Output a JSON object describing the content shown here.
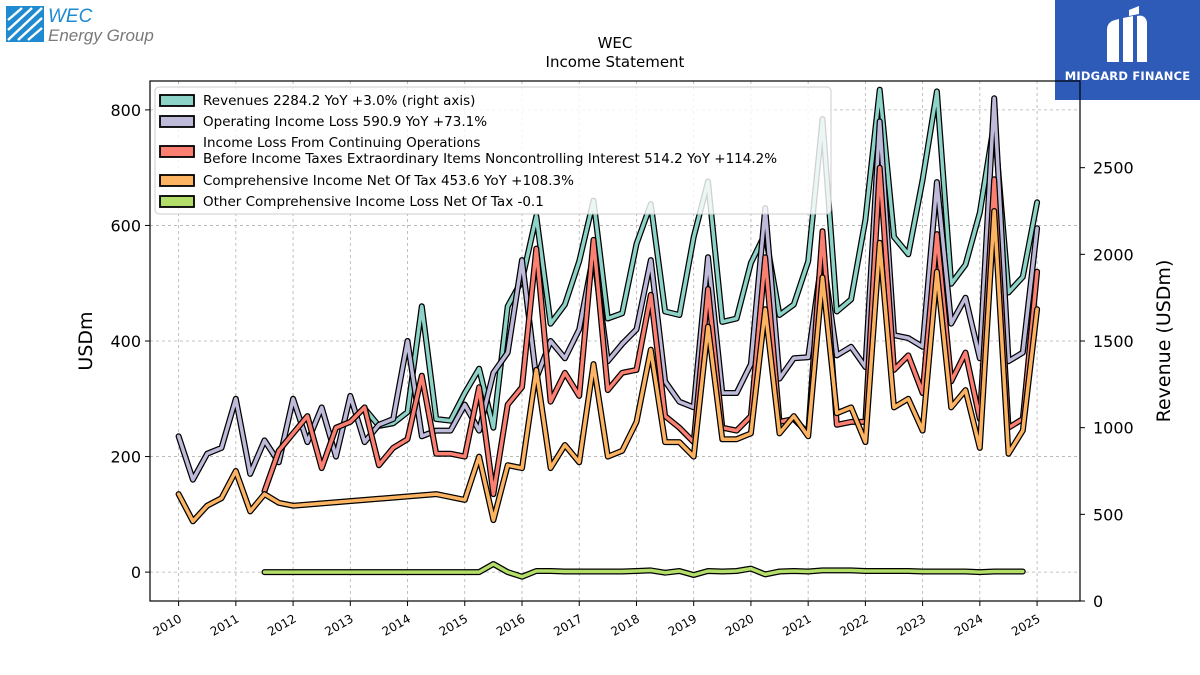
{
  "logos": {
    "wec_line1": "WEC",
    "wec_line2": "Energy Group",
    "midgard": "MIDGARD FINANCE"
  },
  "colors": {
    "revenues": "#8dd3c7",
    "operating_income": "#bebada",
    "pretax_income": "#fb8072",
    "comprehensive_income": "#fdb462",
    "other_comprehensive": "#b3de69"
  },
  "chart_data": {
    "type": "line",
    "title": "WEC",
    "subtitle": "Income Statement",
    "ylabel": "USDm",
    "ylabel_right": "Revenue (USDm)",
    "ylim": [
      -50,
      850
    ],
    "ylim_right": [
      0,
      3000
    ],
    "xlim": [
      2009.5,
      2025.75
    ],
    "x_ticks": [
      2010,
      2011,
      2012,
      2013,
      2014,
      2015,
      2016,
      2017,
      2018,
      2019,
      2020,
      2021,
      2022,
      2023,
      2024,
      2025
    ],
    "y_ticks": [
      0,
      200,
      400,
      600,
      800
    ],
    "y_ticks_right": [
      0,
      500,
      1000,
      1500,
      2000,
      2500
    ],
    "grid": true,
    "legend_position": "top-left",
    "series": [
      {
        "name": "Revenues  2284.2 YoY +3.0% (right axis)",
        "key": "revenues",
        "axis": "right",
        "x": [
          2013.25,
          2013.5,
          2013.75,
          2014.0,
          2014.25,
          2014.5,
          2014.75,
          2015.0,
          2015.25,
          2015.5,
          2015.75,
          2016.0,
          2016.25,
          2016.5,
          2016.75,
          2017.0,
          2017.25,
          2017.5,
          2017.75,
          2018.0,
          2018.25,
          2018.5,
          2018.75,
          2019.0,
          2019.25,
          2019.5,
          2019.75,
          2020.0,
          2020.25,
          2020.5,
          2020.75,
          2021.0,
          2021.25,
          2021.5,
          2021.75,
          2022.0,
          2022.25,
          2022.5,
          2022.75,
          2023.0,
          2023.25,
          2023.5,
          2023.75,
          2024.0,
          2024.25,
          2024.5,
          2024.75,
          2025.0
        ],
        "values": [
          1110,
          1010,
          1025,
          1090,
          1700,
          1050,
          1040,
          1200,
          1340,
          1000,
          1700,
          1850,
          2220,
          1600,
          1710,
          1960,
          2310,
          1630,
          1660,
          2060,
          2290,
          1670,
          1650,
          2100,
          2420,
          1610,
          1630,
          1950,
          2120,
          1650,
          1710,
          1960,
          2780,
          1670,
          1740,
          2200,
          2950,
          2100,
          2000,
          2430,
          2940,
          1830,
          1940,
          2240,
          2760,
          1780,
          1870,
          2300
        ]
      },
      {
        "name": "Operating Income Loss  590.9 YoY +73.1%",
        "key": "operating_income",
        "axis": "left",
        "x": [
          2010.0,
          2010.25,
          2010.5,
          2010.75,
          2011.0,
          2011.25,
          2011.5,
          2011.75,
          2012.0,
          2012.25,
          2012.5,
          2012.75,
          2013.0,
          2013.25,
          2013.5,
          2013.75,
          2014.0,
          2014.25,
          2014.5,
          2014.75,
          2015.0,
          2015.25,
          2015.5,
          2015.75,
          2016.0,
          2016.25,
          2016.5,
          2016.75,
          2017.0,
          2017.25,
          2017.5,
          2017.75,
          2018.0,
          2018.25,
          2018.5,
          2018.75,
          2019.0,
          2019.25,
          2019.5,
          2019.75,
          2020.0,
          2020.25,
          2020.5,
          2020.75,
          2021.0,
          2021.25,
          2021.5,
          2021.75,
          2022.0,
          2022.25,
          2022.5,
          2022.75,
          2023.0,
          2023.25,
          2023.5,
          2023.75,
          2024.0,
          2024.25,
          2024.5,
          2024.75,
          2025.0
        ],
        "values": [
          235,
          160,
          205,
          215,
          300,
          170,
          228,
          190,
          300,
          225,
          285,
          200,
          305,
          225,
          255,
          265,
          400,
          235,
          245,
          245,
          290,
          245,
          345,
          380,
          540,
          335,
          400,
          370,
          420,
          550,
          365,
          395,
          420,
          540,
          330,
          295,
          285,
          545,
          310,
          310,
          360,
          630,
          335,
          370,
          372,
          550,
          375,
          390,
          355,
          780,
          410,
          405,
          390,
          675,
          430,
          475,
          370,
          820,
          365,
          380,
          595
        ]
      },
      {
        "name": "Income Loss From Continuing Operations\nBefore Income Taxes Extraordinary Items Noncontrolling Interest  514.2 YoY +114.2%",
        "key": "pretax_income",
        "axis": "left",
        "x": [
          2011.5,
          2011.75,
          2012.0,
          2012.25,
          2012.5,
          2012.75,
          2013.0,
          2013.25,
          2013.5,
          2013.75,
          2014.0,
          2014.25,
          2014.5,
          2014.75,
          2015.0,
          2015.25,
          2015.5,
          2015.75,
          2016.0,
          2016.25,
          2016.5,
          2016.75,
          2017.0,
          2017.25,
          2017.5,
          2017.75,
          2018.0,
          2018.25,
          2018.5,
          2018.75,
          2019.0,
          2019.25,
          2019.5,
          2019.75,
          2020.0,
          2020.25,
          2020.5,
          2020.75,
          2021.0,
          2021.25,
          2021.5,
          2021.75,
          2022.0,
          2022.25,
          2022.5,
          2022.75,
          2023.0,
          2023.25,
          2023.5,
          2023.75,
          2024.0,
          2024.25,
          2024.5,
          2024.75,
          2025.0
        ],
        "values": [
          140,
          210,
          240,
          270,
          180,
          250,
          260,
          285,
          185,
          215,
          230,
          340,
          205,
          205,
          200,
          320,
          135,
          290,
          320,
          560,
          295,
          345,
          305,
          575,
          315,
          345,
          350,
          480,
          270,
          250,
          225,
          490,
          250,
          245,
          270,
          545,
          260,
          265,
          240,
          590,
          255,
          260,
          260,
          700,
          350,
          375,
          310,
          585,
          330,
          380,
          265,
          680,
          250,
          265,
          520
        ]
      },
      {
        "name": "Comprehensive Income Net Of Tax  453.6 YoY +108.3%",
        "key": "comprehensive_income",
        "axis": "left",
        "x": [
          2010.0,
          2010.25,
          2010.5,
          2010.75,
          2011.0,
          2011.25,
          2011.5,
          2011.75,
          2012.0,
          2014.5,
          2015.0,
          2015.25,
          2015.5,
          2015.75,
          2016.0,
          2016.25,
          2016.5,
          2016.75,
          2017.0,
          2017.25,
          2017.5,
          2017.75,
          2018.0,
          2018.25,
          2018.5,
          2018.75,
          2019.0,
          2019.25,
          2019.5,
          2019.75,
          2020.0,
          2020.25,
          2020.5,
          2020.75,
          2021.0,
          2021.25,
          2021.5,
          2021.75,
          2022.0,
          2022.25,
          2022.5,
          2022.75,
          2023.0,
          2023.25,
          2023.5,
          2023.75,
          2024.0,
          2024.25,
          2024.5,
          2024.75,
          2025.0
        ],
        "values": [
          135,
          88,
          115,
          128,
          175,
          105,
          135,
          120,
          115,
          135,
          125,
          200,
          90,
          185,
          180,
          350,
          180,
          220,
          190,
          360,
          200,
          210,
          260,
          385,
          225,
          225,
          200,
          425,
          230,
          230,
          240,
          455,
          240,
          270,
          235,
          510,
          275,
          285,
          225,
          570,
          285,
          300,
          245,
          520,
          285,
          315,
          215,
          625,
          205,
          245,
          455
        ]
      },
      {
        "name": "Other Comprehensive Income Loss Net Of Tax  -0.1",
        "key": "other_comprehensive",
        "axis": "left",
        "x": [
          2011.5,
          2014.0,
          2015.0,
          2015.25,
          2015.5,
          2015.75,
          2016.0,
          2016.25,
          2016.5,
          2016.75,
          2017.0,
          2017.25,
          2017.5,
          2017.75,
          2018.0,
          2018.25,
          2018.5,
          2018.75,
          2019.0,
          2019.25,
          2019.5,
          2019.75,
          2020.0,
          2020.25,
          2020.5,
          2020.75,
          2021.0,
          2021.25,
          2021.5,
          2021.75,
          2022.0,
          2022.25,
          2022.5,
          2022.75,
          2023.0,
          2023.25,
          2023.5,
          2023.75,
          2024.0,
          2024.25,
          2024.5,
          2024.75
        ],
        "values": [
          0,
          0,
          0,
          0,
          14,
          0,
          -8,
          2,
          2,
          1,
          1,
          1,
          1,
          1,
          2,
          3,
          -1,
          2,
          -5,
          2,
          1,
          2,
          6,
          -4,
          1,
          2,
          1,
          3,
          3,
          3,
          2,
          2,
          2,
          2,
          1,
          1,
          1,
          1,
          0,
          1,
          1,
          1
        ]
      }
    ]
  }
}
